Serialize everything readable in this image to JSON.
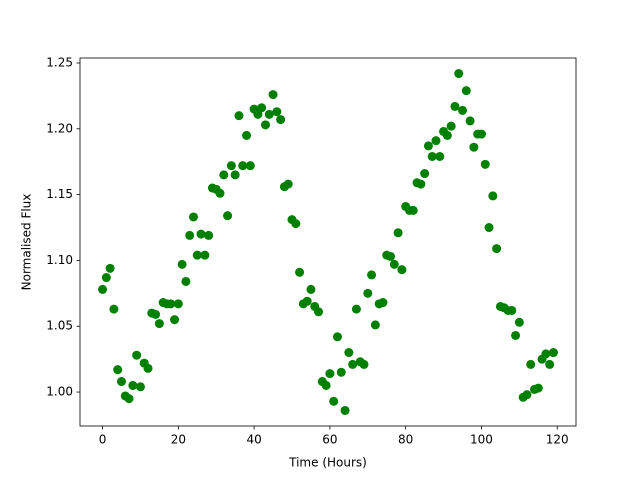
{
  "chart_data": {
    "type": "scatter",
    "xlabel": "Time (Hours)",
    "ylabel": "Normalised Flux",
    "x": [
      0,
      1,
      2,
      3,
      4,
      5,
      6,
      7,
      8,
      9,
      10,
      11,
      12,
      13,
      14,
      15,
      16,
      17,
      18,
      19,
      20,
      21,
      22,
      23,
      24,
      25,
      26,
      27,
      28,
      29,
      30,
      31,
      32,
      33,
      34,
      35,
      36,
      37,
      38,
      39,
      40,
      41,
      42,
      43,
      44,
      45,
      46,
      47,
      48,
      49,
      50,
      51,
      52,
      53,
      54,
      55,
      56,
      57,
      58,
      59,
      60,
      61,
      62,
      63,
      64,
      65,
      66,
      67,
      68,
      69,
      70,
      71,
      72,
      73,
      74,
      75,
      76,
      77,
      78,
      79,
      80,
      81,
      82,
      83,
      84,
      85,
      86,
      87,
      88,
      89,
      90,
      91,
      92,
      93,
      94,
      95,
      96,
      97,
      98,
      99,
      100,
      101,
      102,
      103,
      104,
      105,
      106,
      107,
      108,
      109,
      110,
      111,
      112,
      113,
      114,
      115,
      116,
      117,
      118,
      119
    ],
    "series": [
      {
        "color": "#008000",
        "values": [
          1.078,
          1.087,
          1.094,
          1.063,
          1.017,
          1.008,
          0.997,
          0.995,
          1.005,
          1.028,
          1.004,
          1.022,
          1.018,
          1.06,
          1.059,
          1.052,
          1.068,
          1.067,
          1.067,
          1.055,
          1.067,
          1.097,
          1.084,
          1.119,
          1.133,
          1.104,
          1.12,
          1.104,
          1.119,
          1.155,
          1.154,
          1.151,
          1.165,
          1.134,
          1.172,
          1.165,
          1.21,
          1.172,
          1.195,
          1.172,
          1.215,
          1.211,
          1.216,
          1.203,
          1.211,
          1.226,
          1.213,
          1.207,
          1.156,
          1.158,
          1.131,
          1.128,
          1.091,
          1.067,
          1.069,
          1.078,
          1.065,
          1.061,
          1.008,
          1.005,
          1.014,
          0.993,
          1.042,
          1.015,
          0.986,
          1.03,
          1.021,
          1.063,
          1.023,
          1.021,
          1.075,
          1.089,
          1.051,
          1.067,
          1.068,
          1.104,
          1.103,
          1.097,
          1.121,
          1.093,
          1.141,
          1.138,
          1.138,
          1.159,
          1.158,
          1.166,
          1.187,
          1.179,
          1.191,
          1.179,
          1.198,
          1.195,
          1.202,
          1.217,
          1.242,
          1.214,
          1.229,
          1.206,
          1.186,
          1.196,
          1.196,
          1.173,
          1.125,
          1.149,
          1.109,
          1.065,
          1.064,
          1.062,
          1.062,
          1.043,
          1.053,
          0.996,
          0.998,
          1.021,
          1.002,
          1.003,
          1.025,
          1.029,
          1.021,
          1.03
        ]
      }
    ],
    "xlim": [
      -5.95,
      124.95
    ],
    "ylim": [
      0.9742,
      1.2538
    ],
    "xticks": [
      0,
      20,
      40,
      60,
      80,
      100,
      120
    ],
    "yticks": [
      {
        "value": 1.0,
        "label": "1.00"
      },
      {
        "value": 1.05,
        "label": "1.05"
      },
      {
        "value": 1.1,
        "label": "1.10"
      },
      {
        "value": 1.15,
        "label": "1.15"
      },
      {
        "value": 1.2,
        "label": "1.20"
      },
      {
        "value": 1.25,
        "label": "1.25"
      }
    ]
  }
}
